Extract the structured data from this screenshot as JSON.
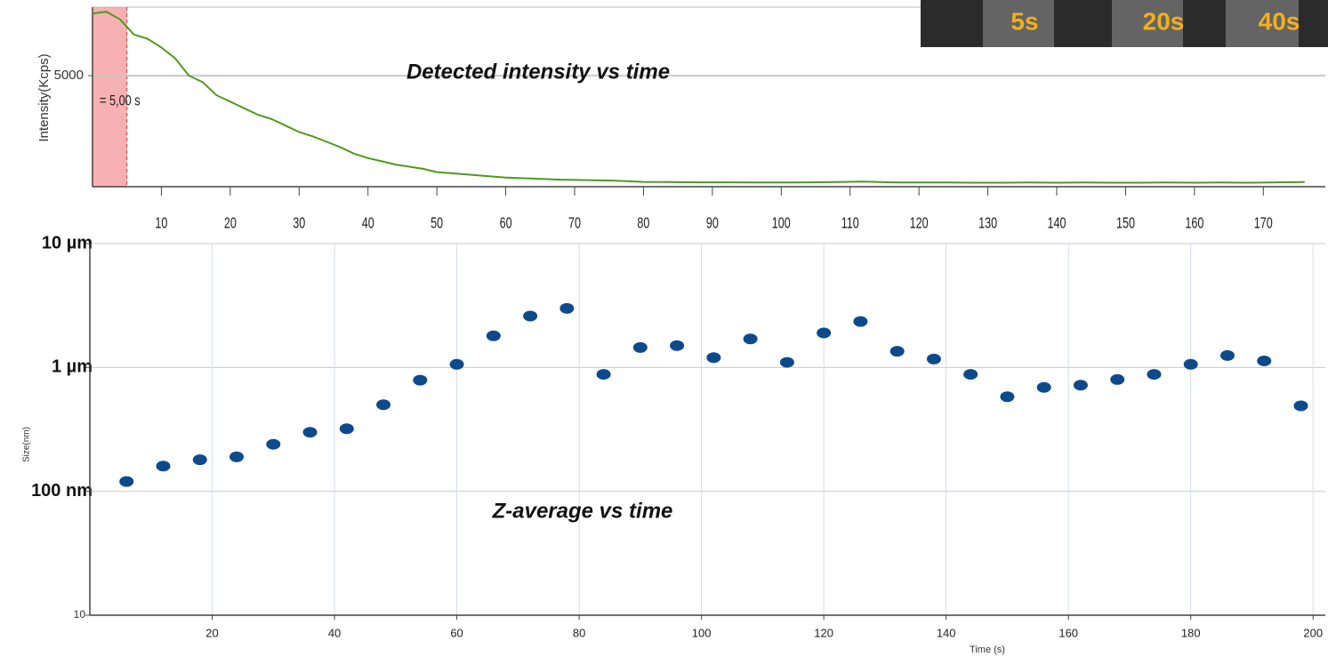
{
  "chart_data": [
    {
      "type": "line",
      "annotation": "Detected intensity vs time",
      "ylabel": "Intensity(Kcps)",
      "xlim": [
        0,
        179
      ],
      "ylim": [
        0,
        8000
      ],
      "xticks": [
        10,
        20,
        30,
        40,
        50,
        60,
        70,
        80,
        90,
        100,
        110,
        120,
        130,
        140,
        150,
        160,
        170
      ],
      "yticks": [
        5000
      ],
      "grid": true,
      "color": "#4f9a1c",
      "shaded_region": {
        "xlim": [
          0,
          5
        ],
        "label": "= 5,00 s",
        "color": "#f7a3a6"
      },
      "x": [
        0,
        2,
        4,
        6,
        8,
        10,
        12,
        14,
        16,
        18,
        20,
        22,
        24,
        26,
        28,
        30,
        32,
        34,
        36,
        38,
        40,
        42,
        44,
        46,
        48,
        50,
        52,
        54,
        56,
        58,
        60,
        64,
        68,
        72,
        76,
        80,
        84,
        88,
        92,
        96,
        100,
        104,
        108,
        112,
        116,
        120,
        124,
        128,
        132,
        136,
        140,
        144,
        148,
        152,
        156,
        160,
        164,
        168,
        172,
        176
      ],
      "values": [
        7870,
        7950,
        7600,
        6900,
        6700,
        6300,
        5800,
        5000,
        4700,
        4100,
        3800,
        3500,
        3200,
        3000,
        2700,
        2400,
        2200,
        1950,
        1700,
        1400,
        1200,
        1050,
        900,
        800,
        700,
        550,
        500,
        450,
        400,
        350,
        300,
        250,
        200,
        180,
        150,
        100,
        90,
        80,
        80,
        70,
        70,
        80,
        90,
        110,
        80,
        70,
        70,
        60,
        60,
        70,
        60,
        70,
        60,
        60,
        70,
        60,
        70,
        60,
        80,
        90
      ]
    },
    {
      "type": "scatter",
      "annotation": "Z-average vs time",
      "xlabel": "Time (s)",
      "ylabel": "Size(nm)",
      "log_y": true,
      "xlim": [
        0,
        202
      ],
      "ylim": [
        10,
        10000
      ],
      "xticks": [
        20,
        40,
        60,
        80,
        100,
        120,
        140,
        160,
        180,
        200
      ],
      "yticks": [
        10,
        {
          "value": 100,
          "label": "100 nm"
        },
        {
          "value": 1000,
          "label": "1 µm"
        },
        {
          "value": 10000,
          "label": "10 µm"
        }
      ],
      "grid": true,
      "color": "#0d4a8c",
      "x": [
        6,
        12,
        18,
        24,
        30,
        36,
        42,
        48,
        54,
        60,
        66,
        72,
        78,
        84,
        90,
        96,
        102,
        108,
        114,
        120,
        126,
        132,
        138,
        144,
        150,
        156,
        162,
        168,
        174,
        180,
        186,
        192,
        198
      ],
      "values": [
        120,
        160,
        180,
        190,
        240,
        300,
        320,
        500,
        790,
        1060,
        1800,
        2600,
        3000,
        880,
        1450,
        1500,
        1200,
        1700,
        1100,
        1900,
        2350,
        1350,
        1170,
        880,
        580,
        690,
        720,
        800,
        880,
        1060,
        1250,
        1130,
        490
      ]
    }
  ],
  "inset": {
    "labels": [
      "5s",
      "20s",
      "40s"
    ]
  }
}
